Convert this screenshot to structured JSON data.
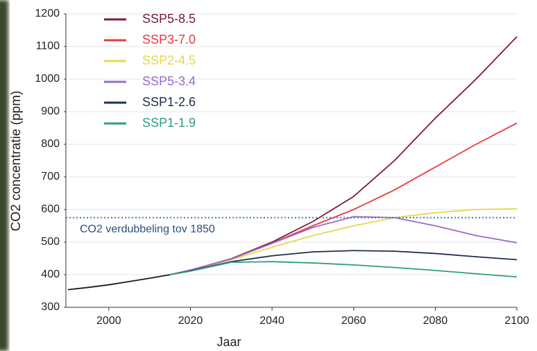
{
  "chart_data": {
    "type": "line",
    "y_label": "CO2 concentratie (ppm)",
    "x_label": "Jaar",
    "xlim": [
      1990,
      2100
    ],
    "xticks": [
      2000,
      2020,
      2040,
      2060,
      2080,
      2100
    ],
    "ylim": [
      300,
      1200
    ],
    "yticks": [
      300,
      400,
      500,
      600,
      700,
      800,
      900,
      1000,
      1100,
      1200
    ],
    "grid": true,
    "legend": "top-left",
    "historical": {
      "color": "#1a1a1a",
      "x": [
        1990,
        1995,
        2000,
        2005,
        2010,
        2015
      ],
      "values": [
        354,
        361,
        369,
        379,
        389,
        400
      ]
    },
    "x": [
      2015,
      2020,
      2030,
      2040,
      2050,
      2060,
      2070,
      2080,
      2090,
      2100
    ],
    "series": [
      {
        "name": "SSP5-8.5",
        "color": "#7b1a3a",
        "values": [
          400,
          414,
          449,
          500,
          563,
          640,
          750,
          880,
          1000,
          1130
        ]
      },
      {
        "name": "SSP3-7.0",
        "color": "#e8393e",
        "values": [
          400,
          414,
          448,
          497,
          550,
          600,
          660,
          730,
          800,
          865
        ]
      },
      {
        "name": "SSP2-4.5",
        "color": "#e6d84a",
        "values": [
          400,
          413,
          446,
          484,
          520,
          550,
          575,
          590,
          600,
          602
        ]
      },
      {
        "name": "SSP5-3.4",
        "color": "#9a6bc8",
        "values": [
          400,
          414,
          448,
          496,
          545,
          578,
          575,
          550,
          520,
          498
        ]
      },
      {
        "name": "SSP1-2.6",
        "color": "#1f2f4f",
        "values": [
          400,
          412,
          440,
          458,
          470,
          474,
          472,
          465,
          455,
          446
        ]
      },
      {
        "name": "SSP1-1.9",
        "color": "#2e9c84",
        "values": [
          400,
          411,
          438,
          440,
          436,
          430,
          422,
          413,
          403,
          393
        ]
      }
    ],
    "reference_line": {
      "value": 575,
      "label": "CO2 verdubbeling tov 1850",
      "color": "#3a78c9"
    }
  }
}
